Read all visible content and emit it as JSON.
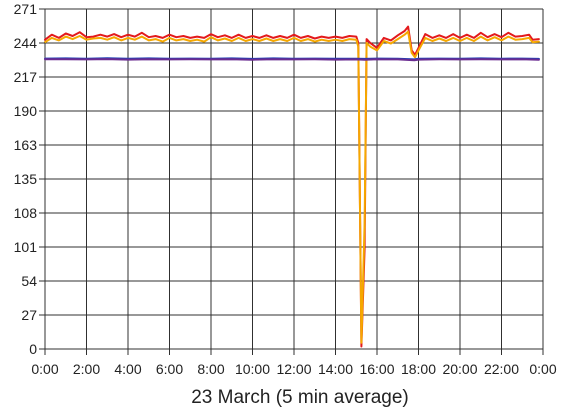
{
  "chart_data": {
    "type": "line",
    "title": "",
    "xlabel": "23 March (5 min average)",
    "ylabel": "",
    "x_start": "0:00",
    "x_end": "0:00",
    "x_tick_labels": [
      "0:00",
      "2:00",
      "4:00",
      "6:00",
      "8:00",
      "10:00",
      "12:00",
      "14:00",
      "16:00",
      "18:00",
      "20:00",
      "22:00",
      "0:00"
    ],
    "y_tick_labels": [
      "0",
      "27",
      "54",
      "101",
      "108",
      "135",
      "163",
      "190",
      "217",
      "244",
      "271"
    ],
    "grid": true,
    "legend": "none",
    "series": [
      {
        "color": "#e31a1c",
        "points": [
          [
            0.0,
            246.5
          ],
          [
            0.33,
            250.5
          ],
          [
            0.67,
            248.0
          ],
          [
            1.0,
            251.5
          ],
          [
            1.33,
            249.5
          ],
          [
            1.67,
            252.5
          ],
          [
            2.0,
            248.5
          ],
          [
            2.33,
            249.0
          ],
          [
            2.67,
            250.5
          ],
          [
            3.0,
            249.0
          ],
          [
            3.33,
            251.0
          ],
          [
            3.67,
            248.5
          ],
          [
            4.0,
            250.5
          ],
          [
            4.33,
            249.0
          ],
          [
            4.67,
            252.0
          ],
          [
            5.0,
            248.5
          ],
          [
            5.33,
            249.5
          ],
          [
            5.67,
            248.0
          ],
          [
            6.0,
            250.5
          ],
          [
            6.33,
            248.5
          ],
          [
            6.67,
            249.5
          ],
          [
            7.0,
            248.0
          ],
          [
            7.33,
            249.0
          ],
          [
            7.67,
            248.0
          ],
          [
            8.0,
            251.0
          ],
          [
            8.33,
            248.5
          ],
          [
            8.67,
            250.0
          ],
          [
            9.0,
            248.0
          ],
          [
            9.33,
            250.5
          ],
          [
            9.67,
            248.0
          ],
          [
            10.0,
            249.5
          ],
          [
            10.33,
            248.0
          ],
          [
            10.67,
            250.0
          ],
          [
            11.0,
            248.0
          ],
          [
            11.33,
            249.5
          ],
          [
            11.67,
            248.0
          ],
          [
            12.0,
            250.5
          ],
          [
            12.33,
            248.0
          ],
          [
            12.67,
            249.5
          ],
          [
            13.0,
            247.5
          ],
          [
            13.33,
            249.0
          ],
          [
            13.67,
            248.0
          ],
          [
            14.0,
            249.0
          ],
          [
            14.33,
            248.0
          ],
          [
            14.67,
            249.5
          ],
          [
            15.0,
            249.0
          ],
          [
            15.1,
            244.0
          ],
          [
            15.25,
            2.0
          ],
          [
            15.4,
            80.0
          ],
          [
            15.5,
            247.0
          ],
          [
            15.67,
            244.0
          ],
          [
            16.0,
            240.0
          ],
          [
            16.33,
            248.0
          ],
          [
            16.67,
            246.0
          ],
          [
            17.0,
            250.0
          ],
          [
            17.33,
            253.5
          ],
          [
            17.5,
            257.0
          ],
          [
            17.67,
            238.0
          ],
          [
            17.83,
            234.5
          ],
          [
            18.0,
            240.0
          ],
          [
            18.33,
            251.0
          ],
          [
            18.67,
            248.0
          ],
          [
            19.0,
            250.0
          ],
          [
            19.33,
            248.0
          ],
          [
            19.67,
            251.0
          ],
          [
            20.0,
            248.0
          ],
          [
            20.33,
            250.5
          ],
          [
            20.67,
            248.0
          ],
          [
            21.0,
            252.0
          ],
          [
            21.33,
            248.5
          ],
          [
            21.67,
            251.0
          ],
          [
            22.0,
            248.5
          ],
          [
            22.33,
            252.0
          ],
          [
            22.67,
            249.0
          ],
          [
            23.0,
            249.5
          ],
          [
            23.33,
            250.5
          ],
          [
            23.5,
            246.5
          ],
          [
            23.8,
            247.0
          ]
        ]
      },
      {
        "color": "#f5a800",
        "points": [
          [
            0.0,
            244.5
          ],
          [
            0.33,
            248.0
          ],
          [
            0.67,
            246.0
          ],
          [
            1.0,
            249.0
          ],
          [
            1.33,
            247.0
          ],
          [
            1.67,
            249.5
          ],
          [
            2.0,
            246.5
          ],
          [
            2.33,
            247.5
          ],
          [
            2.67,
            248.0
          ],
          [
            3.0,
            246.5
          ],
          [
            3.33,
            248.5
          ],
          [
            3.67,
            246.0
          ],
          [
            4.0,
            248.0
          ],
          [
            4.33,
            246.5
          ],
          [
            4.67,
            249.0
          ],
          [
            5.0,
            246.0
          ],
          [
            5.33,
            247.0
          ],
          [
            5.67,
            245.0
          ],
          [
            6.0,
            248.0
          ],
          [
            6.33,
            246.0
          ],
          [
            6.67,
            247.0
          ],
          [
            7.0,
            245.5
          ],
          [
            7.33,
            246.5
          ],
          [
            7.67,
            245.0
          ],
          [
            8.0,
            248.5
          ],
          [
            8.33,
            246.0
          ],
          [
            8.67,
            247.5
          ],
          [
            9.0,
            245.5
          ],
          [
            9.33,
            248.0
          ],
          [
            9.67,
            245.5
          ],
          [
            10.0,
            247.0
          ],
          [
            10.33,
            245.5
          ],
          [
            10.67,
            247.5
          ],
          [
            11.0,
            245.5
          ],
          [
            11.33,
            247.0
          ],
          [
            11.67,
            245.5
          ],
          [
            12.0,
            248.0
          ],
          [
            12.33,
            245.5
          ],
          [
            12.67,
            247.0
          ],
          [
            13.0,
            245.0
          ],
          [
            13.33,
            246.5
          ],
          [
            13.67,
            245.5
          ],
          [
            14.0,
            246.5
          ],
          [
            14.33,
            245.5
          ],
          [
            14.67,
            247.0
          ],
          [
            15.0,
            246.5
          ],
          [
            15.1,
            241.0
          ],
          [
            15.25,
            5.0
          ],
          [
            15.4,
            100.0
          ],
          [
            15.5,
            244.0
          ],
          [
            15.67,
            241.0
          ],
          [
            16.0,
            238.0
          ],
          [
            16.33,
            245.5
          ],
          [
            16.67,
            243.5
          ],
          [
            17.0,
            247.0
          ],
          [
            17.33,
            250.5
          ],
          [
            17.5,
            253.0
          ],
          [
            17.67,
            236.0
          ],
          [
            17.83,
            232.5
          ],
          [
            18.0,
            238.0
          ],
          [
            18.33,
            248.0
          ],
          [
            18.67,
            245.5
          ],
          [
            19.0,
            247.5
          ],
          [
            19.33,
            245.5
          ],
          [
            19.67,
            248.0
          ],
          [
            20.0,
            245.5
          ],
          [
            20.33,
            248.0
          ],
          [
            20.67,
            245.5
          ],
          [
            21.0,
            249.0
          ],
          [
            21.33,
            246.0
          ],
          [
            21.67,
            248.5
          ],
          [
            22.0,
            246.0
          ],
          [
            22.33,
            249.0
          ],
          [
            22.67,
            246.5
          ],
          [
            23.0,
            247.0
          ],
          [
            23.33,
            248.0
          ],
          [
            23.5,
            244.5
          ],
          [
            23.8,
            245.0
          ]
        ]
      },
      {
        "color": "#1f3fb5",
        "points": [
          [
            0.0,
            231.5
          ],
          [
            1.0,
            231.6
          ],
          [
            2.0,
            231.4
          ],
          [
            3.0,
            231.7
          ],
          [
            4.0,
            231.3
          ],
          [
            5.0,
            231.6
          ],
          [
            6.0,
            231.4
          ],
          [
            7.0,
            231.5
          ],
          [
            8.0,
            231.4
          ],
          [
            9.0,
            231.6
          ],
          [
            10.0,
            231.2
          ],
          [
            11.0,
            231.6
          ],
          [
            12.0,
            231.4
          ],
          [
            13.0,
            231.5
          ],
          [
            14.0,
            231.3
          ],
          [
            15.0,
            231.4
          ],
          [
            15.4,
            231.2
          ],
          [
            16.0,
            231.5
          ],
          [
            17.0,
            231.4
          ],
          [
            17.8,
            230.8
          ],
          [
            18.0,
            231.3
          ],
          [
            19.0,
            231.5
          ],
          [
            20.0,
            231.4
          ],
          [
            21.0,
            231.6
          ],
          [
            22.0,
            231.4
          ],
          [
            23.0,
            231.5
          ],
          [
            23.8,
            231.2
          ]
        ]
      },
      {
        "color": "#6a2c91",
        "points": [
          [
            0.0,
            230.9
          ],
          [
            1.0,
            231.0
          ],
          [
            2.0,
            230.8
          ],
          [
            3.0,
            231.1
          ],
          [
            4.0,
            230.7
          ],
          [
            5.0,
            231.0
          ],
          [
            6.0,
            230.8
          ],
          [
            7.0,
            230.9
          ],
          [
            8.0,
            230.8
          ],
          [
            9.0,
            231.0
          ],
          [
            10.0,
            230.6
          ],
          [
            11.0,
            231.0
          ],
          [
            12.0,
            230.8
          ],
          [
            13.0,
            230.9
          ],
          [
            14.0,
            230.7
          ],
          [
            15.0,
            230.8
          ],
          [
            15.4,
            230.6
          ],
          [
            16.0,
            230.9
          ],
          [
            17.0,
            230.8
          ],
          [
            17.8,
            230.2
          ],
          [
            18.0,
            230.7
          ],
          [
            19.0,
            230.9
          ],
          [
            20.0,
            230.8
          ],
          [
            21.0,
            231.0
          ],
          [
            22.0,
            230.8
          ],
          [
            23.0,
            230.9
          ],
          [
            23.8,
            230.6
          ]
        ]
      }
    ]
  }
}
